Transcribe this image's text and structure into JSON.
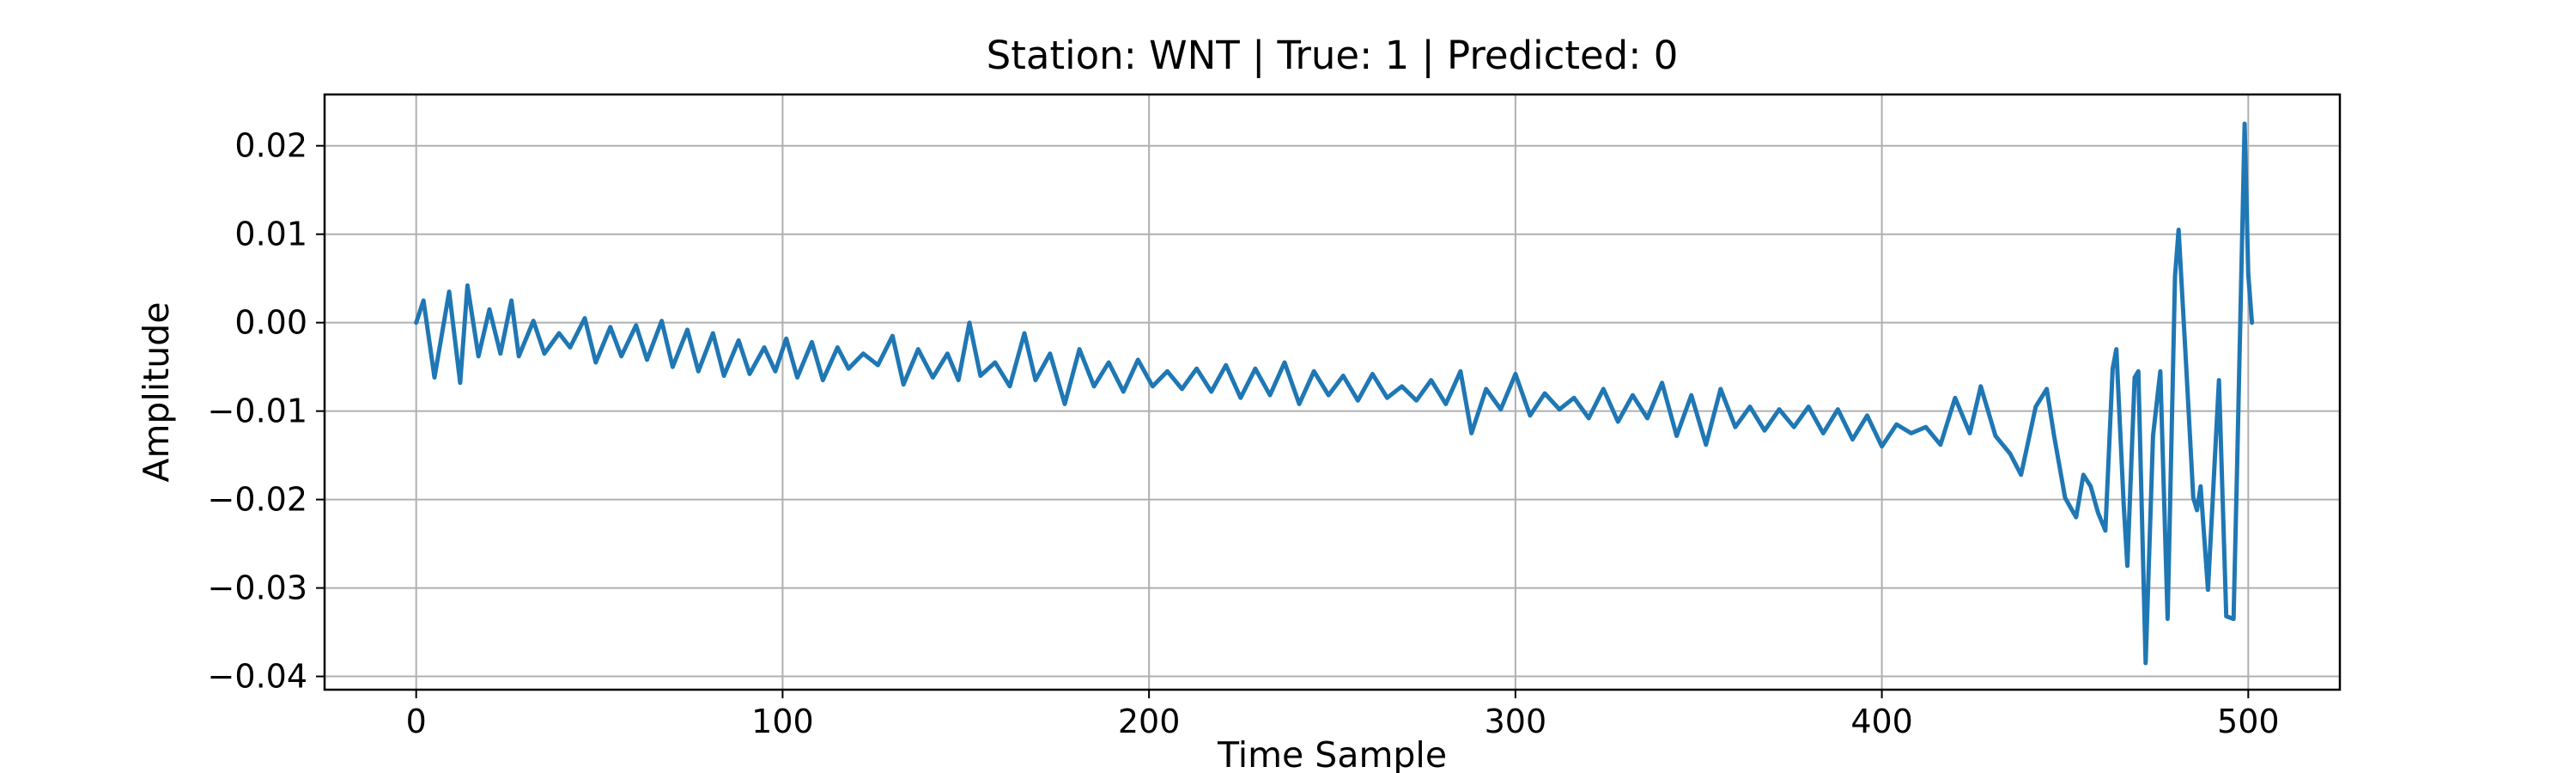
{
  "chart_data": {
    "type": "line",
    "title": "Station: WNT | True: 1 | Predicted: 0",
    "xlabel": "Time Sample",
    "ylabel": "Amplitude",
    "xlim": [
      -25,
      525
    ],
    "ylim": [
      -0.0415,
      0.0258
    ],
    "x_ticks": [
      0,
      100,
      200,
      300,
      400,
      500
    ],
    "x_tick_labels": [
      "0",
      "100",
      "200",
      "300",
      "400",
      "500"
    ],
    "y_ticks": [
      0.02,
      0.01,
      0.0,
      -0.01,
      -0.02,
      -0.03,
      -0.04
    ],
    "y_tick_labels": [
      "0.02",
      "0.01",
      "0.00",
      "−0.01",
      "−0.02",
      "−0.03",
      "−0.04"
    ],
    "grid": true,
    "series": [
      {
        "color": "#1f77b4",
        "points": [
          [
            0,
            0.0
          ],
          [
            2,
            0.0025
          ],
          [
            5,
            -0.0062
          ],
          [
            9,
            0.0035
          ],
          [
            12,
            -0.0068
          ],
          [
            14,
            0.0042
          ],
          [
            17,
            -0.0038
          ],
          [
            20,
            0.0015
          ],
          [
            23,
            -0.0035
          ],
          [
            26,
            0.0025
          ],
          [
            28,
            -0.0038
          ],
          [
            32,
            0.0002
          ],
          [
            35,
            -0.0035
          ],
          [
            39,
            -0.0012
          ],
          [
            42,
            -0.0028
          ],
          [
            46,
            0.0005
          ],
          [
            49,
            -0.0045
          ],
          [
            53,
            -0.0005
          ],
          [
            56,
            -0.0038
          ],
          [
            60,
            -0.0003
          ],
          [
            63,
            -0.0042
          ],
          [
            67,
            0.0002
          ],
          [
            70,
            -0.005
          ],
          [
            74,
            -0.0008
          ],
          [
            77,
            -0.0055
          ],
          [
            81,
            -0.0012
          ],
          [
            84,
            -0.006
          ],
          [
            88,
            -0.002
          ],
          [
            91,
            -0.0058
          ],
          [
            95,
            -0.0028
          ],
          [
            98,
            -0.0055
          ],
          [
            101,
            -0.0018
          ],
          [
            104,
            -0.0062
          ],
          [
            108,
            -0.0022
          ],
          [
            111,
            -0.0065
          ],
          [
            115,
            -0.0028
          ],
          [
            118,
            -0.0052
          ],
          [
            122,
            -0.0035
          ],
          [
            126,
            -0.0048
          ],
          [
            130,
            -0.0015
          ],
          [
            133,
            -0.007
          ],
          [
            137,
            -0.003
          ],
          [
            141,
            -0.0062
          ],
          [
            145,
            -0.0035
          ],
          [
            148,
            -0.0065
          ],
          [
            151,
            0.0
          ],
          [
            154,
            -0.006
          ],
          [
            158,
            -0.0045
          ],
          [
            162,
            -0.0072
          ],
          [
            166,
            -0.0012
          ],
          [
            169,
            -0.0065
          ],
          [
            173,
            -0.0035
          ],
          [
            177,
            -0.0092
          ],
          [
            181,
            -0.003
          ],
          [
            185,
            -0.0072
          ],
          [
            189,
            -0.0045
          ],
          [
            193,
            -0.0078
          ],
          [
            197,
            -0.0042
          ],
          [
            201,
            -0.0072
          ],
          [
            205,
            -0.0055
          ],
          [
            209,
            -0.0075
          ],
          [
            213,
            -0.0052
          ],
          [
            217,
            -0.0078
          ],
          [
            221,
            -0.0048
          ],
          [
            225,
            -0.0085
          ],
          [
            229,
            -0.0052
          ],
          [
            233,
            -0.0082
          ],
          [
            237,
            -0.0045
          ],
          [
            241,
            -0.0092
          ],
          [
            245,
            -0.0055
          ],
          [
            249,
            -0.0082
          ],
          [
            253,
            -0.006
          ],
          [
            257,
            -0.0088
          ],
          [
            261,
            -0.0058
          ],
          [
            265,
            -0.0085
          ],
          [
            269,
            -0.0072
          ],
          [
            273,
            -0.0088
          ],
          [
            277,
            -0.0065
          ],
          [
            281,
            -0.0092
          ],
          [
            285,
            -0.0055
          ],
          [
            288,
            -0.0125
          ],
          [
            292,
            -0.0075
          ],
          [
            296,
            -0.0098
          ],
          [
            300,
            -0.0058
          ],
          [
            304,
            -0.0105
          ],
          [
            308,
            -0.008
          ],
          [
            312,
            -0.0098
          ],
          [
            316,
            -0.0085
          ],
          [
            320,
            -0.0108
          ],
          [
            324,
            -0.0075
          ],
          [
            328,
            -0.0112
          ],
          [
            332,
            -0.0082
          ],
          [
            336,
            -0.0108
          ],
          [
            340,
            -0.0068
          ],
          [
            344,
            -0.0128
          ],
          [
            348,
            -0.0082
          ],
          [
            352,
            -0.0138
          ],
          [
            356,
            -0.0075
          ],
          [
            360,
            -0.0118
          ],
          [
            364,
            -0.0095
          ],
          [
            368,
            -0.0122
          ],
          [
            372,
            -0.0098
          ],
          [
            376,
            -0.0118
          ],
          [
            380,
            -0.0095
          ],
          [
            384,
            -0.0125
          ],
          [
            388,
            -0.0098
          ],
          [
            392,
            -0.0132
          ],
          [
            396,
            -0.0105
          ],
          [
            400,
            -0.014
          ],
          [
            404,
            -0.0115
          ],
          [
            408,
            -0.0125
          ],
          [
            412,
            -0.0118
          ],
          [
            416,
            -0.0138
          ],
          [
            420,
            -0.0085
          ],
          [
            424,
            -0.0125
          ],
          [
            427,
            -0.0072
          ],
          [
            431,
            -0.0128
          ],
          [
            435,
            -0.0148
          ],
          [
            438,
            -0.0172
          ],
          [
            442,
            -0.0095
          ],
          [
            445,
            -0.0075
          ],
          [
            447,
            -0.0128
          ],
          [
            450,
            -0.0198
          ],
          [
            453,
            -0.022
          ],
          [
            455,
            -0.0172
          ],
          [
            457,
            -0.0185
          ],
          [
            459,
            -0.0215
          ],
          [
            461,
            -0.0235
          ],
          [
            463,
            -0.0052
          ],
          [
            464,
            -0.003
          ],
          [
            466,
            -0.0205
          ],
          [
            467,
            -0.0275
          ],
          [
            469,
            -0.0062
          ],
          [
            470,
            -0.0055
          ],
          [
            472,
            -0.0385
          ],
          [
            474,
            -0.0128
          ],
          [
            476,
            -0.0055
          ],
          [
            478,
            -0.0335
          ],
          [
            480,
            0.0052
          ],
          [
            481,
            0.0105
          ],
          [
            483,
            -0.0045
          ],
          [
            485,
            -0.0198
          ],
          [
            486,
            -0.0212
          ],
          [
            487,
            -0.0185
          ],
          [
            489,
            -0.0302
          ],
          [
            492,
            -0.0065
          ],
          [
            494,
            -0.0332
          ],
          [
            496,
            -0.0335
          ],
          [
            497,
            -0.0155
          ],
          [
            499,
            0.0225
          ],
          [
            500,
            0.0055
          ],
          [
            501,
            0.0
          ]
        ]
      }
    ]
  }
}
